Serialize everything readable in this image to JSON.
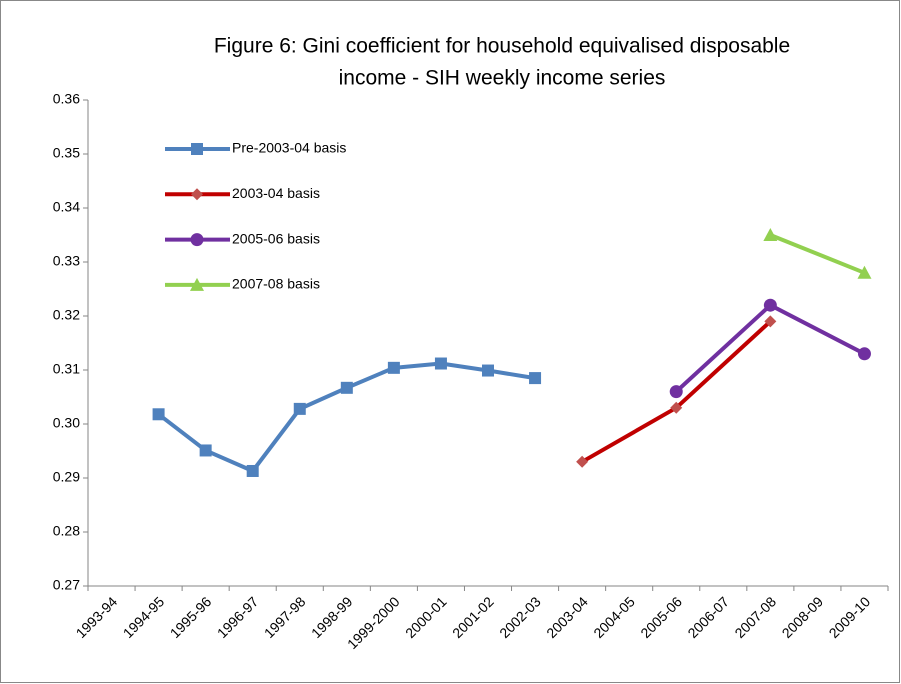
{
  "chart_data": {
    "type": "line",
    "title": [
      "Figure 6: Gini coefficient for household equivalised disposable",
      "income - SIH weekly income series"
    ],
    "categories": [
      "1993-94",
      "1994-95",
      "1995-96",
      "1996-97",
      "1997-98",
      "1998-99",
      "1999-2000",
      "2000-01",
      "2001-02",
      "2002-03",
      "2003-04",
      "2004-05",
      "2005-06",
      "2006-07",
      "2007-08",
      "2008-09",
      "2009-10"
    ],
    "series": [
      {
        "name": "Pre-2003-04 basis",
        "color": "#4f81bd",
        "marker": "square",
        "values": [
          null,
          0.3018,
          0.2951,
          0.2913,
          0.3028,
          0.3067,
          0.3104,
          0.3112,
          0.3099,
          0.3085,
          null,
          null,
          null,
          null,
          null,
          null,
          null
        ]
      },
      {
        "name": "2003-04 basis",
        "color": "#c00000",
        "marker_color": "#c0504d",
        "marker": "diamond",
        "values": [
          null,
          null,
          null,
          null,
          null,
          null,
          null,
          null,
          null,
          null,
          0.293,
          null,
          0.303,
          null,
          0.319,
          null,
          null
        ]
      },
      {
        "name": "2005-06 basis",
        "color": "#7030a0",
        "marker": "circle",
        "values": [
          null,
          null,
          null,
          null,
          null,
          null,
          null,
          null,
          null,
          null,
          null,
          null,
          0.306,
          null,
          0.322,
          null,
          0.313
        ]
      },
      {
        "name": "2007-08 basis",
        "color": "#92d050",
        "marker": "triangle",
        "values": [
          null,
          null,
          null,
          null,
          null,
          null,
          null,
          null,
          null,
          null,
          null,
          null,
          null,
          null,
          0.335,
          null,
          0.328
        ]
      }
    ],
    "span_gaps": true,
    "ylim": [
      0.27,
      0.36
    ],
    "yticks": [
      0.27,
      0.28,
      0.29,
      {
        "value": 0.3,
        "label": "0.30"
      },
      0.31,
      0.32,
      0.33,
      0.34,
      0.35,
      0.36
    ],
    "grid": false,
    "legend": "upper-left"
  }
}
